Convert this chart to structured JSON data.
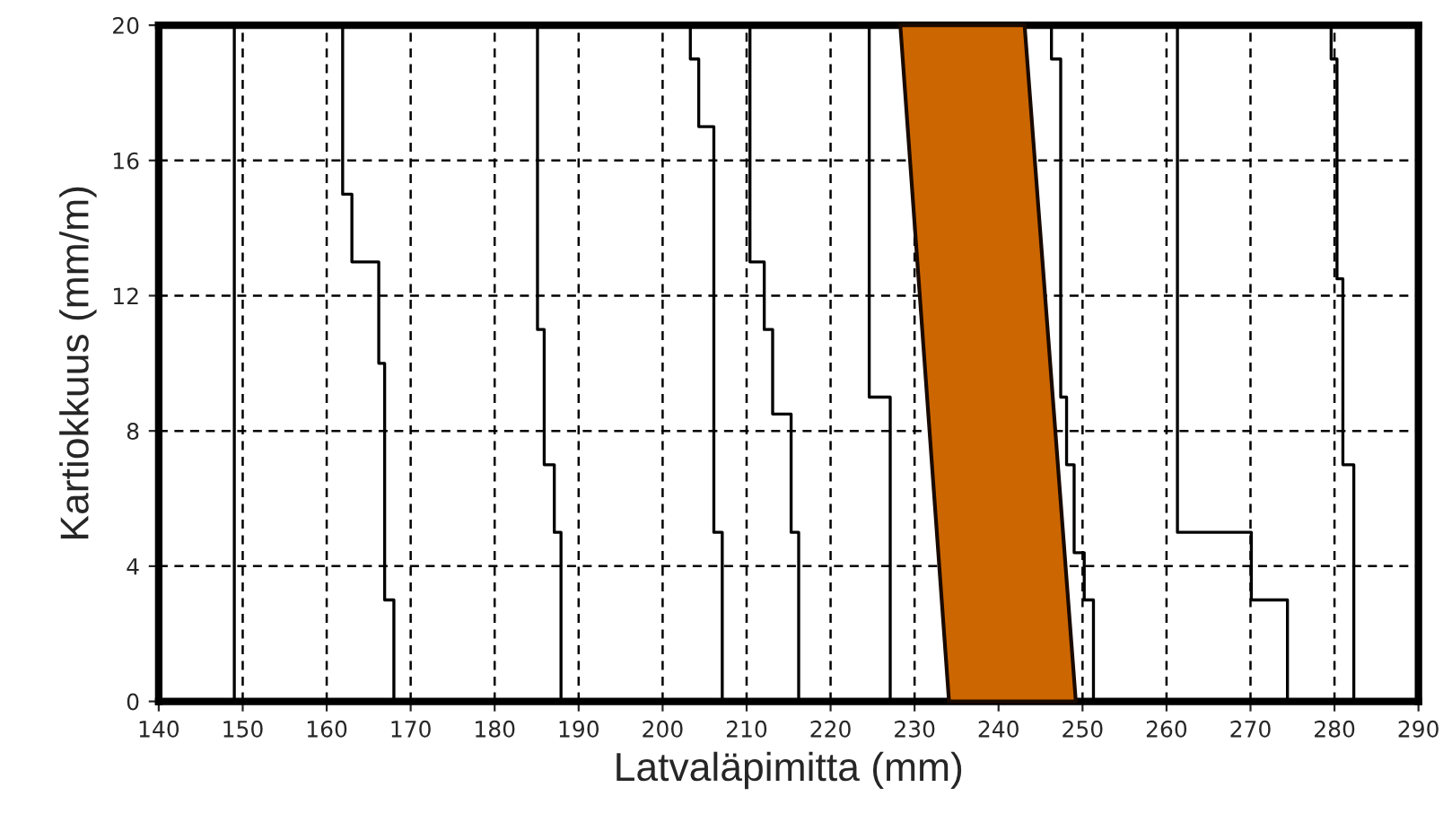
{
  "chart_data": {
    "type": "line",
    "xlabel": "Latvaläpimitta (mm)",
    "ylabel": "Kartiokkuus (mm/m)",
    "xlim": [
      140,
      290
    ],
    "xticks": [
      140,
      150,
      160,
      170,
      180,
      190,
      200,
      210,
      220,
      230,
      240,
      250,
      260,
      270,
      280,
      290
    ],
    "ylim": [
      0,
      20
    ],
    "yticks": [
      0,
      4,
      8,
      12,
      16,
      20
    ],
    "grid": true,
    "legend": false,
    "marker": "none",
    "line_style": "solid",
    "series": [
      {
        "color": "#000000",
        "x": [
          149.0,
          149.0
        ],
        "values": [
          20,
          0
        ]
      },
      {
        "color": "#000000",
        "x": [
          161.9,
          161.9,
          163.0,
          163.0,
          166.2,
          166.2,
          166.9,
          166.9,
          168.0,
          168.0
        ],
        "values": [
          20,
          15,
          15,
          13,
          13,
          10,
          10,
          3,
          3,
          0
        ]
      },
      {
        "color": "#000000",
        "x": [
          185.1,
          185.1,
          185.9,
          185.9,
          187.1,
          187.1,
          187.9,
          187.9
        ],
        "values": [
          20,
          11,
          11,
          7,
          7,
          5,
          5,
          0
        ]
      },
      {
        "color": "#000000",
        "x": [
          203.3,
          203.3,
          204.3,
          204.3,
          206.1,
          206.1,
          207.1,
          207.1
        ],
        "values": [
          20,
          19,
          19,
          17,
          17,
          5,
          5,
          0
        ]
      },
      {
        "color": "#000000",
        "x": [
          210.4,
          210.4,
          212.1,
          212.1,
          213.1,
          213.1,
          215.3,
          215.3,
          216.2,
          216.2
        ],
        "values": [
          20,
          13,
          13,
          11,
          11,
          8.5,
          8.5,
          5,
          5,
          0
        ]
      },
      {
        "color": "#000000",
        "x": [
          224.6,
          224.6,
          227.1,
          227.1
        ],
        "values": [
          20,
          9,
          9,
          0
        ]
      },
      {
        "color": "#000000",
        "x": [
          246.3,
          246.3,
          247.4,
          247.4,
          248.1,
          248.1,
          249.0,
          249.0,
          250.2,
          250.2,
          251.3,
          251.3
        ],
        "values": [
          20,
          19,
          19,
          9,
          9,
          7,
          7,
          4.4,
          4.4,
          3,
          3,
          0
        ]
      },
      {
        "color": "#000000",
        "x": [
          261.3,
          261.3,
          270.1,
          270.1,
          274.4,
          274.4
        ],
        "values": [
          20,
          5,
          5,
          3,
          3,
          0
        ]
      },
      {
        "color": "#000000",
        "x": [
          279.6,
          279.6,
          280.3,
          280.3,
          281.0,
          281.0,
          282.3,
          282.3
        ],
        "values": [
          20,
          19,
          19,
          12.5,
          12.5,
          7,
          7,
          0
        ]
      },
      {
        "type": "area",
        "color": "#cc6600",
        "x": [
          228.3,
          243.1,
          249.2,
          234.1
        ],
        "values": [
          20,
          20,
          0,
          0
        ]
      }
    ]
  }
}
